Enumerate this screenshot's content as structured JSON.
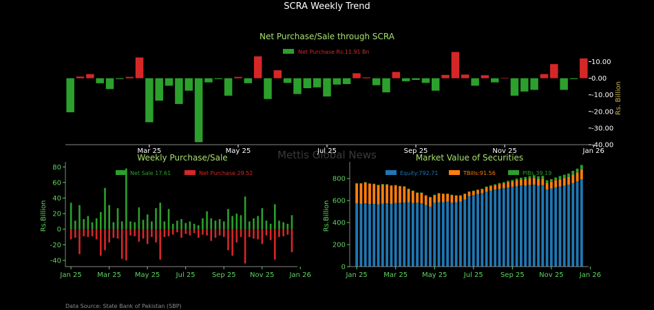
{
  "page": {
    "title": "SCRA Weekly Trend",
    "watermark": "Mettis Global News",
    "source": "Data Source: State Bank of Pakistan (SBP)"
  },
  "colors": {
    "background": "#000000",
    "green": "#2ca02c",
    "red": "#d62728",
    "blue": "#1f77b4",
    "orange": "#ff7f0e",
    "title_green": "#a6e06a",
    "axis_green": "#5fd35f",
    "axis_white": "#ffffff",
    "axis_olive": "#c8b44a",
    "spine": "#888888"
  },
  "chart_data": [
    {
      "id": "scra_net",
      "type": "bar",
      "title": "Net Purchase/Sale through SCRA",
      "ylabel": "Rs. Billion",
      "xlabel": "",
      "ylim": [
        -40,
        16
      ],
      "yticks": [
        10,
        0,
        -10,
        -20,
        -30,
        -40
      ],
      "ytick_labels": [
        "10.00",
        "0.00",
        "-10.00",
        "-20.00",
        "-30.00",
        "-40.00"
      ],
      "x_ticks": [
        {
          "label": "Mar 25",
          "index": 8
        },
        {
          "label": "May 25",
          "index": 17
        },
        {
          "label": "Jul 25",
          "index": 26
        },
        {
          "label": "Sep 25",
          "index": 35
        },
        {
          "label": "Nov 25",
          "index": 44
        },
        {
          "label": "Jan 26",
          "index": 53
        }
      ],
      "legend": {
        "label": "Net Purchase Rs.11.91 Bn",
        "color": "#2ca02c",
        "text_color": "#d62728",
        "position": "top"
      },
      "values": [
        -20.5,
        1.0,
        2.5,
        -3.0,
        -6.5,
        -0.5,
        0.8,
        12.5,
        -26.5,
        -13.5,
        -4.5,
        -15.5,
        -7.5,
        -38.5,
        -2.5,
        -0.5,
        -10.5,
        0.8,
        -3.0,
        13.2,
        -12.5,
        4.8,
        -2.8,
        -9.5,
        -6.0,
        -5.5,
        -11.0,
        -3.8,
        -3.5,
        3.0,
        0.5,
        -4.2,
        -8.5,
        3.8,
        -1.8,
        -1.0,
        -2.8,
        -7.5,
        2.0,
        15.8,
        2.2,
        -4.5,
        1.8,
        -2.5,
        0.3,
        -10.5,
        -8.0,
        -7.0,
        2.5,
        8.5,
        -7.0,
        -0.5,
        11.91
      ]
    },
    {
      "id": "weekly_ps",
      "type": "bar",
      "title": "Weekly Purchase/Sale",
      "ylabel": "Rs.Billion",
      "xlabel": "",
      "ylim": [
        -48,
        82
      ],
      "yticks": [
        80,
        60,
        40,
        20,
        0,
        -20,
        -40
      ],
      "x_ticks": [
        {
          "label": "Jan 25",
          "index": 0
        },
        {
          "label": "Mar 25",
          "index": 9
        },
        {
          "label": "May 25",
          "index": 18
        },
        {
          "label": "Jul 25",
          "index": 27
        },
        {
          "label": "Sep 25",
          "index": 36
        },
        {
          "label": "Nov 25",
          "index": 45
        },
        {
          "label": "Jan 26",
          "index": 54
        }
      ],
      "legend": [
        {
          "label": "Net Sale 17.61",
          "color": "#2ca02c"
        },
        {
          "label": "Net Purchase 29.52",
          "color": "#d62728"
        }
      ],
      "series": [
        {
          "name": "Net Sale 17.61",
          "values": [
            34,
            11,
            31,
            13,
            17,
            9,
            14,
            22,
            53,
            31,
            9,
            27,
            10,
            78,
            10,
            9,
            28,
            12,
            19,
            10,
            27,
            34,
            10,
            26,
            7,
            11,
            13,
            8,
            10,
            7,
            5,
            14,
            23,
            14,
            11,
            13,
            10,
            26,
            17,
            20,
            18,
            42,
            10,
            14,
            17,
            27,
            11,
            7,
            32,
            11,
            9,
            7,
            18
          ]
        },
        {
          "name": "Net Purchase 29.52",
          "values": [
            -13,
            -11,
            -32,
            -9,
            -10,
            -9,
            -13,
            -34,
            -27,
            -17,
            -11,
            -12,
            -38,
            -40,
            -8,
            -9,
            -16,
            -12,
            -19,
            -10,
            -17,
            -39,
            -10,
            -9,
            -7,
            -4,
            -11,
            -6,
            -8,
            -5,
            -11,
            -7,
            -8,
            -15,
            -11,
            -8,
            -10,
            -27,
            -34,
            -17,
            -10,
            -44,
            -10,
            -12,
            -13,
            -19,
            -8,
            -14,
            -39,
            -10,
            -9,
            -7,
            -29.52
          ]
        }
      ]
    },
    {
      "id": "market_value",
      "type": "bar",
      "stacked": true,
      "title": "Market Value of Securities",
      "ylabel": "Rs.Billion",
      "xlabel": "",
      "ylim": [
        0,
        920
      ],
      "yticks": [
        0,
        200,
        400,
        600,
        800
      ],
      "x_ticks": [
        {
          "label": "Jan 25",
          "index": 0
        },
        {
          "label": "Mar 25",
          "index": 9
        },
        {
          "label": "May 25",
          "index": 18
        },
        {
          "label": "Jul 25",
          "index": 27
        },
        {
          "label": "Sep 25",
          "index": 36
        },
        {
          "label": "Nov 25",
          "index": 45
        },
        {
          "label": "Jan 26",
          "index": 54
        }
      ],
      "legend": [
        {
          "label": "Equity:792.71",
          "color": "#1f77b4"
        },
        {
          "label": "TBills:91.56",
          "color": "#ff7f0e"
        },
        {
          "label": "PIBs 39.19",
          "color": "#2ca02c"
        }
      ],
      "series": [
        {
          "name": "Equity:792.71",
          "values": [
            575,
            570,
            575,
            568,
            570,
            565,
            572,
            575,
            570,
            578,
            580,
            582,
            585,
            578,
            580,
            575,
            560,
            545,
            580,
            585,
            585,
            590,
            580,
            585,
            590,
            610,
            640,
            650,
            660,
            668,
            680,
            690,
            700,
            705,
            712,
            718,
            725,
            730,
            738,
            735,
            742,
            745,
            735,
            740,
            700,
            710,
            720,
            728,
            735,
            745,
            760,
            775,
            792.71
          ]
        },
        {
          "name": "TBills:91.56",
          "values": [
            180,
            185,
            190,
            185,
            180,
            175,
            175,
            170,
            165,
            160,
            150,
            145,
            120,
            110,
            90,
            95,
            85,
            85,
            70,
            80,
            75,
            70,
            70,
            60,
            55,
            50,
            40,
            35,
            35,
            35,
            40,
            40,
            40,
            45,
            45,
            50,
            50,
            55,
            55,
            60,
            60,
            60,
            60,
            60,
            60,
            60,
            65,
            65,
            70,
            70,
            75,
            80,
            91.56
          ]
        },
        {
          "name": "PIBs 39.19",
          "values": [
            3,
            3,
            3,
            3,
            3,
            3,
            3,
            3,
            3,
            3,
            3,
            3,
            3,
            3,
            3,
            3,
            3,
            3,
            3,
            3,
            3,
            3,
            3,
            3,
            3,
            3,
            3,
            5,
            5,
            5,
            8,
            8,
            8,
            10,
            10,
            12,
            12,
            15,
            15,
            20,
            20,
            25,
            25,
            25,
            25,
            25,
            25,
            30,
            30,
            30,
            35,
            35,
            39.19
          ]
        }
      ]
    }
  ]
}
